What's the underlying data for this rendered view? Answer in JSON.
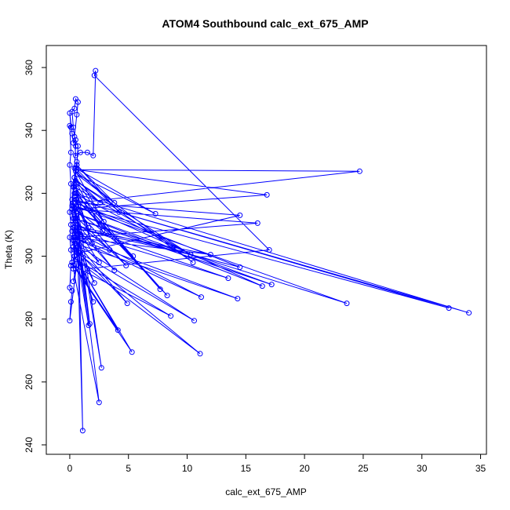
{
  "chart_data": {
    "type": "line",
    "title": "ATOM4 Southbound calc_ext_675_AMP",
    "xlabel": "calc_ext_675_AMP",
    "ylabel": "Theta (K)",
    "xlim": [
      -2,
      35.5
    ],
    "ylim": [
      237,
      367
    ],
    "xticks": [
      0,
      5,
      10,
      15,
      20,
      25,
      30,
      35
    ],
    "yticks": [
      240,
      260,
      280,
      300,
      320,
      340,
      360
    ],
    "grid": false,
    "legend": "none",
    "series": [
      {
        "color": "#0000ff",
        "marker": "open-circle",
        "points": [
          [
            0.3,
            305
          ],
          [
            0.5,
            312
          ],
          [
            0.2,
            318
          ],
          [
            0.4,
            325
          ],
          [
            0.6,
            330
          ],
          [
            0.3,
            322
          ],
          [
            0.2,
            315
          ],
          [
            0.5,
            308
          ],
          [
            0.4,
            300
          ],
          [
            0.3,
            296
          ],
          [
            0.6,
            320
          ],
          [
            0.4,
            328
          ],
          [
            0.5,
            335
          ],
          [
            0.3,
            341
          ],
          [
            0.2,
            346
          ],
          [
            0.4,
            347
          ],
          [
            0.5,
            350
          ],
          [
            0.7,
            349
          ],
          [
            0.6,
            345
          ],
          [
            0.4,
            338
          ],
          [
            0.5,
            332
          ],
          [
            0.9,
            333
          ],
          [
            1.5,
            333
          ],
          [
            2.0,
            332
          ],
          [
            2.2,
            359
          ],
          [
            2.1,
            357.5
          ],
          [
            17.0,
            302
          ],
          [
            1.5,
            296
          ],
          [
            0.8,
            301
          ],
          [
            14.5,
            313
          ],
          [
            0.7,
            317
          ],
          [
            24.7,
            327
          ],
          [
            0.6,
            327.5
          ],
          [
            16.8,
            319.5
          ],
          [
            0.5,
            315
          ],
          [
            16.0,
            310.5
          ],
          [
            0.4,
            306
          ],
          [
            12.0,
            300.5
          ],
          [
            0.3,
            309
          ],
          [
            10.3,
            300.5
          ],
          [
            0.4,
            320
          ],
          [
            34.0,
            282
          ],
          [
            0.5,
            318
          ],
          [
            32.3,
            283.5
          ],
          [
            0.3,
            316
          ],
          [
            23.6,
            285
          ],
          [
            0.4,
            312
          ],
          [
            17.2,
            291
          ],
          [
            0.3,
            314
          ],
          [
            16.4,
            290.5
          ],
          [
            0.5,
            317
          ],
          [
            14.5,
            296.5
          ],
          [
            0.3,
            310
          ],
          [
            13.5,
            293
          ],
          [
            0.4,
            308
          ],
          [
            11.2,
            287
          ],
          [
            0.3,
            306
          ],
          [
            14.3,
            286.5
          ],
          [
            0.5,
            304
          ],
          [
            10.6,
            279.5
          ],
          [
            0.4,
            302
          ],
          [
            11.1,
            269
          ],
          [
            0.5,
            299
          ],
          [
            8.6,
            281
          ],
          [
            0.3,
            297
          ],
          [
            5.3,
            269.5
          ],
          [
            0.4,
            300
          ],
          [
            4.1,
            276.5
          ],
          [
            0.2,
            298
          ],
          [
            2.5,
            253.5
          ],
          [
            0.6,
            310
          ],
          [
            1.1,
            244.5
          ],
          [
            0.7,
            315
          ],
          [
            2.7,
            264.5
          ],
          [
            0.6,
            312
          ],
          [
            1.7,
            278.5
          ],
          [
            0.5,
            308
          ],
          [
            1.6,
            278
          ],
          [
            0.4,
            305
          ],
          [
            4.9,
            285
          ],
          [
            0.3,
            303
          ],
          [
            2.0,
            285.5
          ],
          [
            0.4,
            304
          ],
          [
            2.1,
            291.5
          ],
          [
            0.5,
            306
          ],
          [
            2.5,
            298
          ],
          [
            0.6,
            309
          ],
          [
            3.8,
            295.5
          ],
          [
            0.5,
            311
          ],
          [
            3.4,
            302
          ],
          [
            0.4,
            313
          ],
          [
            4.8,
            297
          ],
          [
            0.5,
            315
          ],
          [
            5.4,
            300
          ],
          [
            0.6,
            318
          ],
          [
            8.3,
            287.5
          ],
          [
            0.5,
            320
          ],
          [
            7.7,
            289.5
          ],
          [
            0.4,
            322
          ],
          [
            10.3,
            300.5
          ],
          [
            0.5,
            324
          ],
          [
            10.5,
            298
          ],
          [
            0.6,
            326
          ],
          [
            7.3,
            313.5
          ],
          [
            0.5,
            328
          ],
          [
            4.2,
            314
          ],
          [
            0.6,
            329
          ],
          [
            3.8,
            317
          ],
          [
            0.5,
            327
          ],
          [
            2.9,
            311
          ],
          [
            0.4,
            325
          ],
          [
            2.6,
            317
          ],
          [
            0.6,
            323
          ],
          [
            2.8,
            308
          ],
          [
            0.5,
            321
          ],
          [
            1.9,
            304
          ],
          [
            0.4,
            319
          ],
          [
            1.6,
            309
          ],
          [
            0.3,
            317
          ],
          [
            1.2,
            305
          ],
          [
            0.4,
            315
          ],
          [
            0.9,
            307
          ],
          [
            0.0,
            279.5
          ],
          [
            0.1,
            285.5
          ],
          [
            0.2,
            289
          ],
          [
            0.0,
            290
          ],
          [
            0.1,
            297
          ],
          [
            0.2,
            298
          ],
          [
            0.1,
            302
          ],
          [
            0.0,
            306
          ],
          [
            0.1,
            310
          ],
          [
            0.0,
            314
          ],
          [
            0.1,
            323
          ],
          [
            0.0,
            329
          ],
          [
            0.1,
            333
          ],
          [
            0.0,
            341.5
          ],
          [
            0.1,
            341
          ],
          [
            0.0,
            345.5
          ],
          [
            0.2,
            339
          ],
          [
            0.3,
            336
          ],
          [
            0.5,
            337
          ],
          [
            0.7,
            335
          ],
          [
            0.6,
            329
          ],
          [
            0.4,
            323
          ],
          [
            0.2,
            316
          ],
          [
            0.3,
            312
          ],
          [
            0.2,
            308
          ],
          [
            0.4,
            302
          ],
          [
            0.5,
            296
          ],
          [
            0.3,
            292
          ]
        ]
      }
    ]
  }
}
